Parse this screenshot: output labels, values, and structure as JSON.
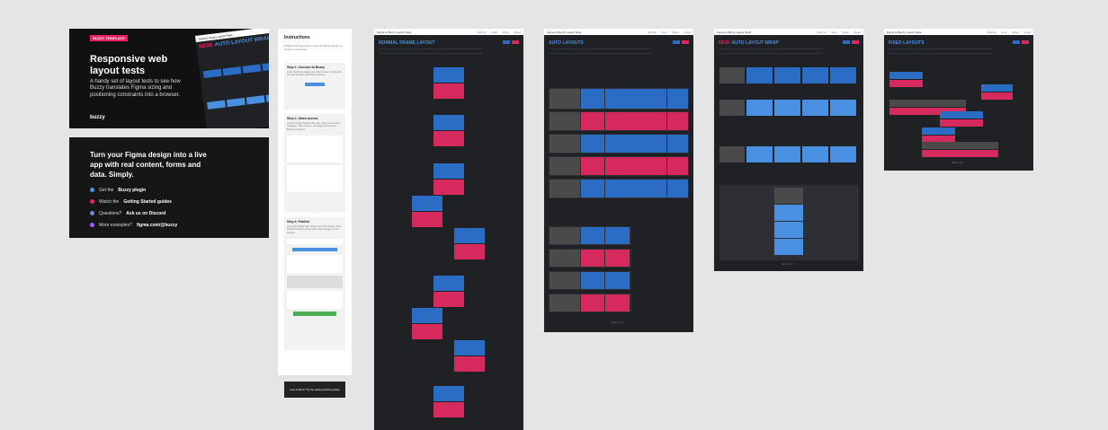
{
  "hero": {
    "badge": "BUZZY TEMPLATE",
    "title": "Responsive web layout tests",
    "description": "A handy set of layout tests to see how Buzzy translates Figma sizing and positioning constraints into a browser.",
    "logo": "buzzy",
    "preview_bar": "Figma to Buzzy Layout Tests",
    "preview_title_new": "NEW:",
    "preview_title": "AUTO LAYOUT WRAP"
  },
  "plugin_card": {
    "title": "Turn your Figma design into a live app with real content, forms and data. Simply.",
    "items": [
      {
        "prefix": "Get the ",
        "bold": "Buzzy plugin",
        "icon": "buzzy-icon",
        "color": "#4a90e2"
      },
      {
        "prefix": "Watch the ",
        "bold": "Getting Started guides",
        "icon": "youtube-icon",
        "color": "#e91e63"
      },
      {
        "prefix": "Questions? ",
        "bold": "Ask us on Discord",
        "icon": "discord-icon",
        "color": "#7289da"
      },
      {
        "prefix": "More examples? ",
        "bold": "figma.com/@buzzy",
        "icon": "figma-icon",
        "color": "#a259ff"
      }
    ]
  },
  "instructions": {
    "title": "Instructions",
    "intro": "Publish this Figma file to test the Buzzy plugin to view it in a browser.",
    "steps": [
      {
        "title": "Step 1: Connect to Buzzy",
        "text": "Open the Buzzy plugin and click Connect. Follow the prompts to enter your Buzzy account."
      },
      {
        "title": "Step 2: Allow access",
        "text": "A new browser window will open, allow your access privileges. Then return to the plugin and wait for Buzzy to connect."
      },
      {
        "title": "Step 3: Publish",
        "text": "Go to the Publish tab. Select one of the frames, then Publish to Buzzy. Buzzy will create the app in your account."
      }
    ],
    "cta": "How to Buzz? Try the Getting Started guides"
  },
  "frames": [
    {
      "title": "NORMAL FRAME LAYOUT",
      "bar": "Figma to Buzzy Layout Tests",
      "footer": ""
    },
    {
      "title": "AUTO LAYOUTS",
      "bar": "Figma to Buzzy Layout Tests",
      "footer": "Back to top"
    },
    {
      "title_new": "NEW:",
      "title": "AUTO LAYOUT WRAP",
      "bar": "Figma to Buzzy Layout Tests",
      "footer": "Back to top"
    },
    {
      "title": "FIXED LAYOUTS",
      "bar": "Figma to Buzzy Layout Tests",
      "footer": "Back to top"
    }
  ],
  "colors": {
    "blue": "#2b6cc4",
    "pink": "#d62a5e",
    "dark": "#1f2125",
    "accent": "#4a90e2"
  }
}
